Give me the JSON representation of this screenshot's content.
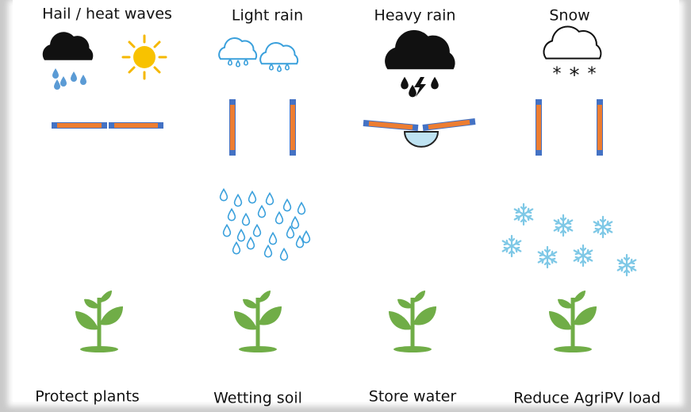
{
  "columns": [
    {
      "weather": "Hail / heat waves",
      "outcome": "Protect plants"
    },
    {
      "weather": "Light rain",
      "outcome": "Wetting soil"
    },
    {
      "weather": "Heavy rain",
      "outcome": "Store water"
    },
    {
      "weather": "Snow",
      "outcome": "Reduce AgriPV load"
    }
  ]
}
